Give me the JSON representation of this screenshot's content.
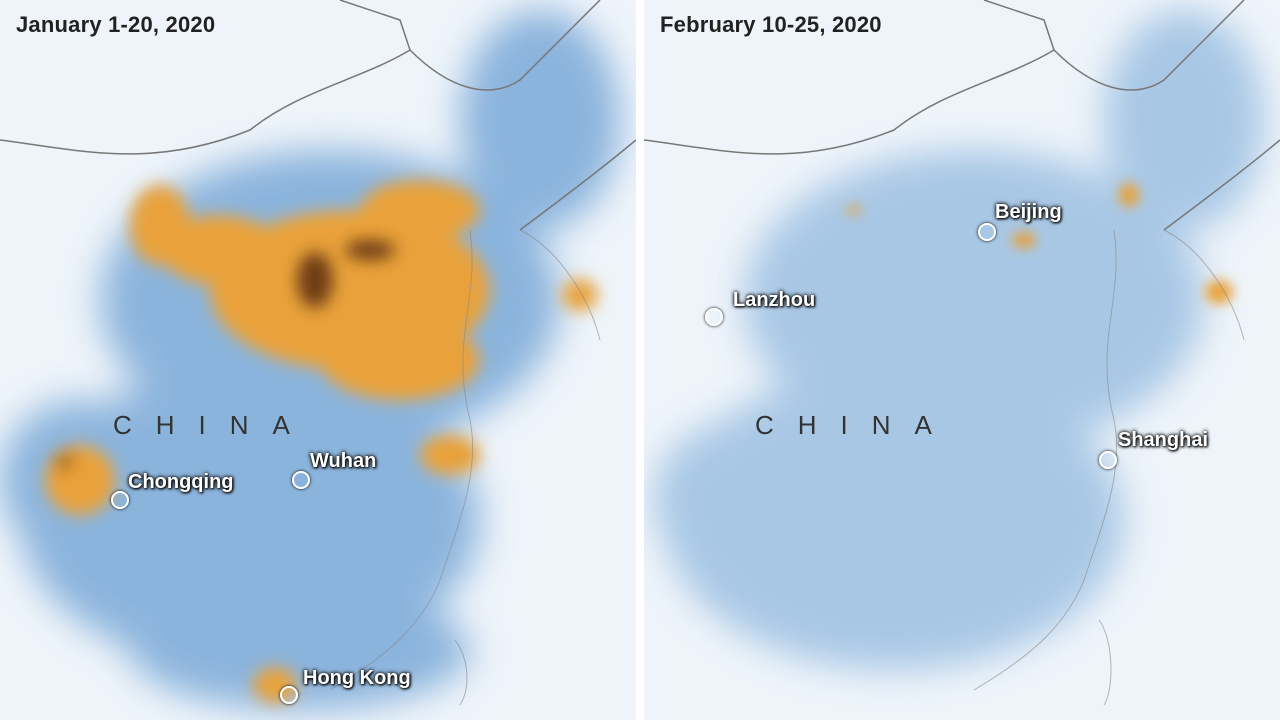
{
  "panels": [
    {
      "title": "January 1-20, 2020",
      "country_label": "CHINA",
      "cities": [
        "Chongqing",
        "Wuhan",
        "Hong Kong"
      ]
    },
    {
      "title": "February 10-25, 2020",
      "country_label": "CHINA",
      "cities": [
        "Beijing",
        "Lanzhou",
        "Shanghai"
      ]
    }
  ],
  "colors": {
    "low_concentration": "#4a86c5",
    "high_concentration": "#e9a23b",
    "peak_concentration": "#5a2a10",
    "background": "#eef4fa"
  }
}
